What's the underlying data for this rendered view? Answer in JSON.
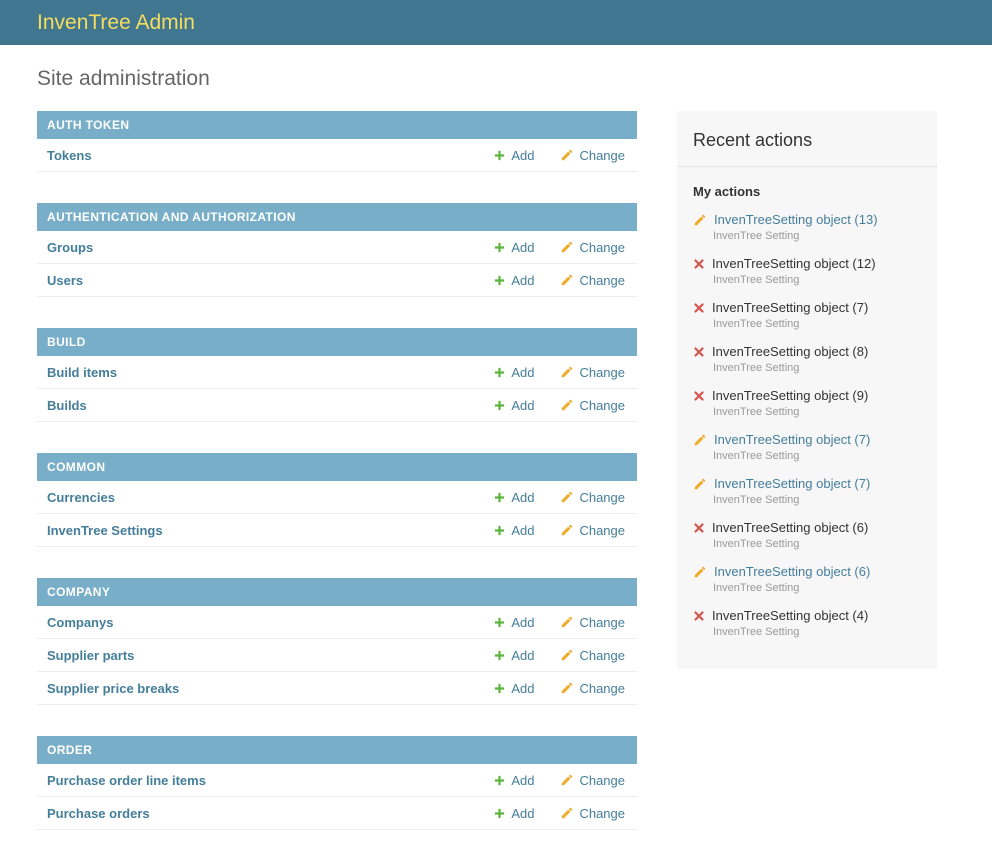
{
  "header": {
    "title": "InvenTree Admin"
  },
  "page": {
    "heading": "Site administration"
  },
  "actions": {
    "add_label": "Add",
    "change_label": "Change"
  },
  "icons": {
    "add": "plus-icon",
    "change": "pencil-icon",
    "delete": "cross-icon"
  },
  "colors": {
    "header_bg": "#417690",
    "brand_yellow": "#f5dd5d",
    "caption_bg": "#79aec8",
    "link_blue": "#447e9b",
    "add_green": "#5ab43c",
    "pencil_gold": "#edac2c",
    "delete_red": "#d9534f",
    "panel_bg": "#f7f7f7"
  },
  "modules": [
    {
      "caption": "AUTH TOKEN",
      "rows": [
        {
          "model": "Tokens"
        }
      ]
    },
    {
      "caption": "AUTHENTICATION AND AUTHORIZATION",
      "rows": [
        {
          "model": "Groups"
        },
        {
          "model": "Users"
        }
      ]
    },
    {
      "caption": "BUILD",
      "rows": [
        {
          "model": "Build items"
        },
        {
          "model": "Builds"
        }
      ]
    },
    {
      "caption": "COMMON",
      "rows": [
        {
          "model": "Currencies"
        },
        {
          "model": "InvenTree Settings"
        }
      ]
    },
    {
      "caption": "COMPANY",
      "rows": [
        {
          "model": "Companys"
        },
        {
          "model": "Supplier parts"
        },
        {
          "model": "Supplier price breaks"
        }
      ]
    },
    {
      "caption": "ORDER",
      "rows": [
        {
          "model": "Purchase order line items"
        },
        {
          "model": "Purchase orders"
        }
      ]
    }
  ],
  "recent": {
    "title": "Recent actions",
    "subtitle": "My actions",
    "items": [
      {
        "type": "change",
        "label": "InvenTreeSetting object (13)",
        "sublabel": "InvenTree Setting"
      },
      {
        "type": "delete",
        "label": "InvenTreeSetting object (12)",
        "sublabel": "InvenTree Setting"
      },
      {
        "type": "delete",
        "label": "InvenTreeSetting object (7)",
        "sublabel": "InvenTree Setting"
      },
      {
        "type": "delete",
        "label": "InvenTreeSetting object (8)",
        "sublabel": "InvenTree Setting"
      },
      {
        "type": "delete",
        "label": "InvenTreeSetting object (9)",
        "sublabel": "InvenTree Setting"
      },
      {
        "type": "change",
        "label": "InvenTreeSetting object (7)",
        "sublabel": "InvenTree Setting"
      },
      {
        "type": "change",
        "label": "InvenTreeSetting object (7)",
        "sublabel": "InvenTree Setting"
      },
      {
        "type": "delete",
        "label": "InvenTreeSetting object (6)",
        "sublabel": "InvenTree Setting"
      },
      {
        "type": "change",
        "label": "InvenTreeSetting object (6)",
        "sublabel": "InvenTree Setting"
      },
      {
        "type": "delete",
        "label": "InvenTreeSetting object (4)",
        "sublabel": "InvenTree Setting"
      }
    ]
  }
}
